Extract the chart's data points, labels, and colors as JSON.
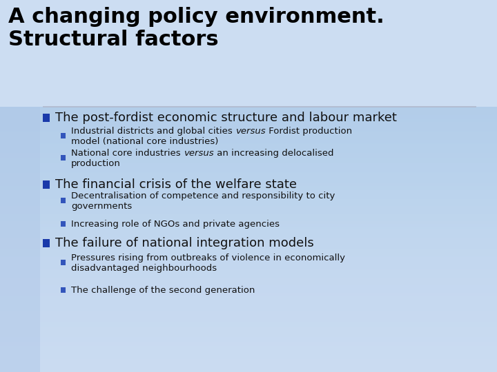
{
  "title_line1": "A changing policy environment.",
  "title_line2": "Structural factors",
  "bg_color": "#c5d8f0",
  "left_band_color": "#b0c8e8",
  "sep_color": "#b0b8cc",
  "bullet1_color": "#1a3aaa",
  "bullet2_color": "#3355bb",
  "title_fontsize": 22,
  "l1_fontsize": 13,
  "l2_fontsize": 9.5,
  "items": [
    {
      "level": 1,
      "parts": [
        {
          "t": "The post-fordist economic structure and labour market",
          "i": false
        }
      ]
    },
    {
      "level": 2,
      "parts": [
        {
          "t": "Industrial districts and global cities ",
          "i": false
        },
        {
          "t": "versus",
          "i": true
        },
        {
          "t": " Fordist production\nmodel (national core industries)",
          "i": false
        }
      ]
    },
    {
      "level": 2,
      "parts": [
        {
          "t": "National core industries ",
          "i": false
        },
        {
          "t": "versus",
          "i": true
        },
        {
          "t": " an increasing delocalised\nproduction",
          "i": false
        }
      ]
    },
    {
      "level": 1,
      "parts": [
        {
          "t": "The financial crisis of the welfare state",
          "i": false
        }
      ]
    },
    {
      "level": 2,
      "parts": [
        {
          "t": "Decentralisation of competence and responsibility to city\ngovernments",
          "i": false
        }
      ]
    },
    {
      "level": 2,
      "parts": [
        {
          "t": "Increasing role of NGOs and private agencies",
          "i": false
        }
      ]
    },
    {
      "level": 1,
      "parts": [
        {
          "t": "The failure of national integration models",
          "i": false
        }
      ]
    },
    {
      "level": 2,
      "parts": [
        {
          "t": "Pressures rising from outbreaks of violence in economically\ndisadvantaged neighbourhoods",
          "i": false
        }
      ]
    },
    {
      "level": 2,
      "parts": [
        {
          "t": "The challenge of the second generation",
          "i": false
        }
      ]
    }
  ]
}
